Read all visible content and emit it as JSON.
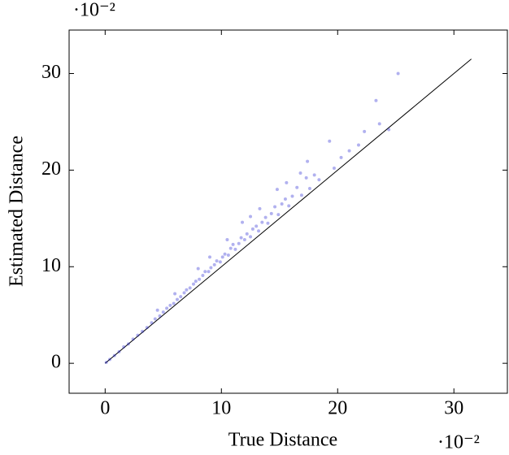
{
  "chart_data": {
    "type": "scatter",
    "x_label": "True Distance",
    "y_label": "Estimated Distance",
    "x_scale_label": "·10⁻²",
    "y_scale_label": "·10⁻²",
    "xlim": [
      -3.1,
      34.6
    ],
    "ylim": [
      -3.1,
      34.5
    ],
    "xticks": [
      0,
      10,
      20,
      30
    ],
    "yticks": [
      0,
      10,
      20,
      30
    ],
    "color": "#2020d0",
    "reference_line": {
      "x": [
        0,
        31.5
      ],
      "y": [
        0,
        31.5
      ],
      "color": "#000000"
    },
    "x": [
      0.1,
      0.4,
      0.8,
      1.2,
      1.6,
      2.0,
      2.4,
      2.8,
      3.2,
      3.6,
      4.0,
      4.3,
      4.7,
      5.0,
      5.3,
      5.6,
      5.9,
      6.2,
      6.5,
      6.8,
      7.0,
      7.3,
      7.6,
      7.8,
      8.1,
      8.4,
      8.6,
      8.9,
      9.1,
      9.4,
      9.6,
      9.9,
      10.1,
      10.3,
      10.6,
      10.8,
      11.0,
      11.2,
      11.5,
      11.7,
      12.0,
      12.2,
      12.5,
      12.7,
      13.0,
      13.2,
      13.5,
      13.8,
      14.0,
      14.3,
      14.6,
      14.9,
      15.2,
      15.5,
      15.8,
      16.1,
      16.5,
      16.9,
      17.3,
      17.6,
      18.0,
      18.4,
      17.4,
      16.8,
      19.3,
      19.7,
      20.3,
      21.0,
      21.8,
      22.3,
      23.3,
      23.6,
      24.4,
      25.2,
      12.5,
      10.5,
      9.0,
      14.8,
      13.3,
      8.0,
      6.0,
      4.5,
      11.8,
      15.6
    ],
    "values": [
      0.1,
      0.4,
      0.8,
      1.2,
      1.7,
      2.0,
      2.5,
      2.9,
      3.3,
      3.7,
      4.2,
      4.6,
      4.9,
      5.3,
      5.7,
      6.0,
      6.2,
      6.6,
      6.9,
      7.3,
      7.6,
      7.8,
      8.2,
      8.5,
      8.7,
      9.1,
      9.5,
      9.5,
      9.9,
      10.2,
      10.6,
      10.5,
      11.0,
      11.3,
      11.2,
      11.9,
      12.3,
      11.8,
      12.4,
      13.0,
      12.8,
      13.4,
      13.1,
      13.9,
      14.2,
      13.7,
      14.6,
      15.1,
      14.5,
      15.5,
      16.2,
      15.4,
      16.5,
      17.0,
      16.3,
      17.3,
      18.2,
      17.4,
      19.2,
      18.1,
      19.5,
      19.0,
      20.9,
      19.7,
      23.0,
      20.2,
      21.3,
      22.0,
      22.6,
      24.0,
      27.2,
      24.8,
      24.2,
      30.0,
      15.2,
      12.8,
      11.0,
      18.0,
      16.0,
      9.8,
      7.2,
      5.5,
      14.6,
      18.7
    ]
  }
}
